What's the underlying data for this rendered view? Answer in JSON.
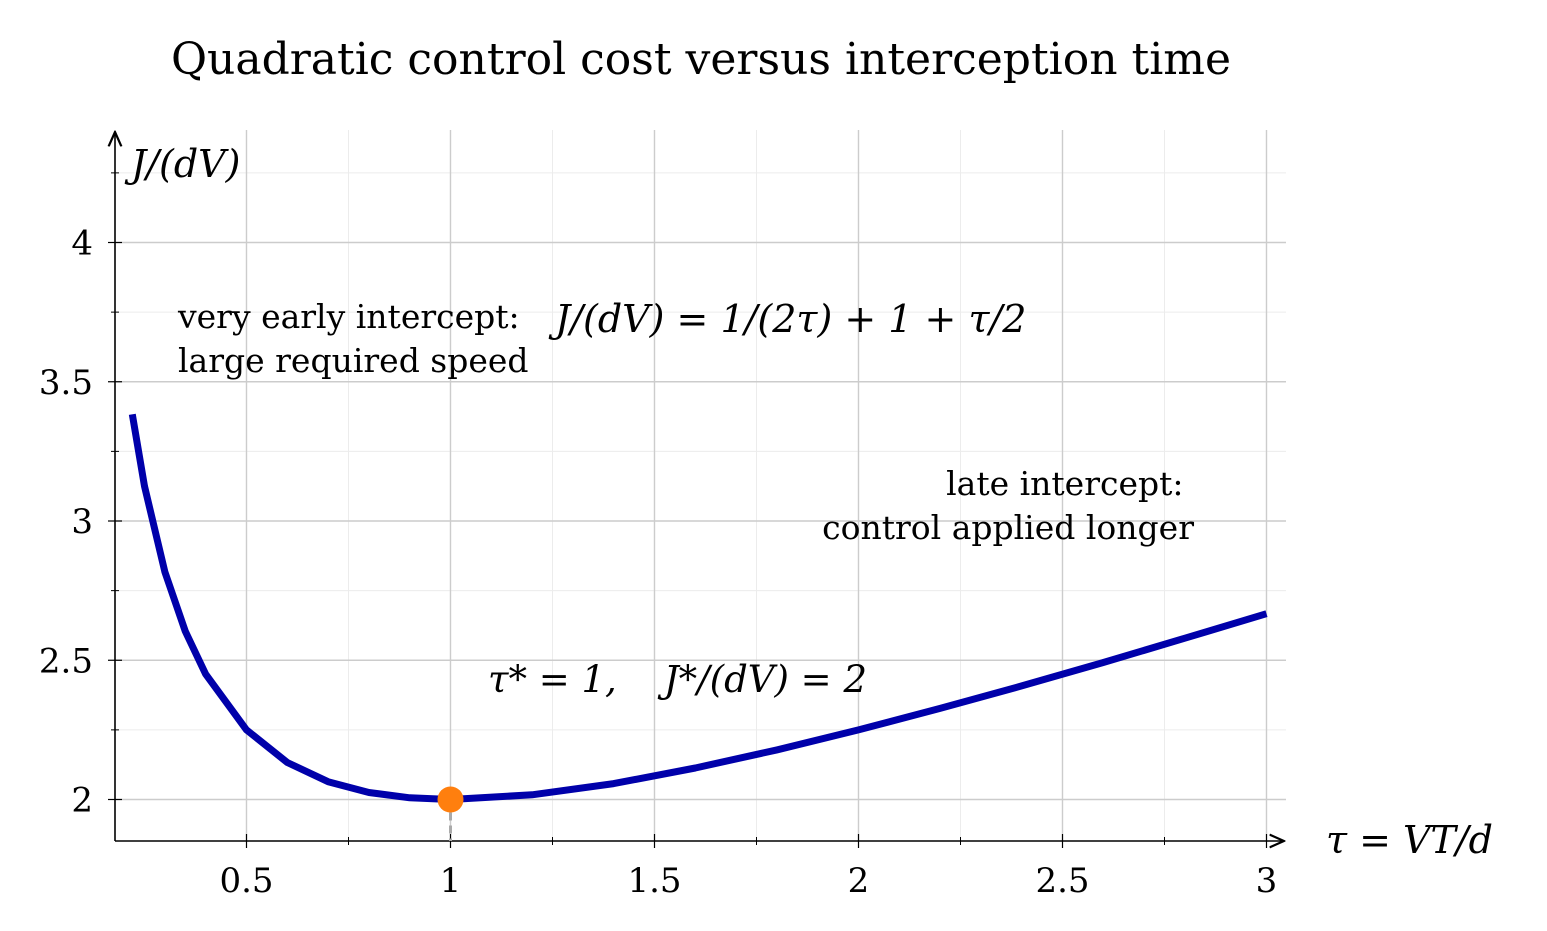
{
  "chart_data": {
    "type": "line",
    "title": "Quadratic control cost versus interception time",
    "xlabel": "τ = VT/d",
    "ylabel": "J/(dV)",
    "xlim": [
      0.18,
      3.05
    ],
    "ylim": [
      1.85,
      4.4
    ],
    "x_ticks": [
      0.5,
      1,
      1.5,
      2,
      2.5,
      3
    ],
    "x_tick_labels": [
      "0.5",
      "1",
      "1.5",
      "2",
      "2.5",
      "3"
    ],
    "y_ticks": [
      2,
      2.5,
      3,
      3.5,
      4
    ],
    "y_tick_labels": [
      "2",
      "2.5",
      "3",
      "3.5",
      "4"
    ],
    "grid": true,
    "series": [
      {
        "color": "#0000aa",
        "x": [
          0.22,
          0.25,
          0.3,
          0.35,
          0.4,
          0.5,
          0.6,
          0.7,
          0.8,
          0.9,
          1.0,
          1.2,
          1.4,
          1.6,
          1.8,
          2.0,
          2.2,
          2.4,
          2.6,
          2.8,
          3.0
        ],
        "y": [
          3.383,
          3.125,
          2.817,
          2.604,
          2.45,
          2.25,
          2.133,
          2.064,
          2.025,
          2.006,
          2.0,
          2.017,
          2.057,
          2.113,
          2.178,
          2.25,
          2.327,
          2.408,
          2.492,
          2.579,
          2.667
        ]
      }
    ],
    "marker": {
      "x": 1,
      "y": 2,
      "color": "#ff7f0e"
    },
    "annotations": {
      "early_line1": "very early intercept:",
      "early_line2": "large required speed",
      "late_line1": "late intercept:",
      "late_line2": "control applied longer",
      "optimum": "τ* = 1,    J*/(dV) = 2",
      "formula": "J/(dV) = 1/(2τ) + 1 + τ/2"
    }
  }
}
